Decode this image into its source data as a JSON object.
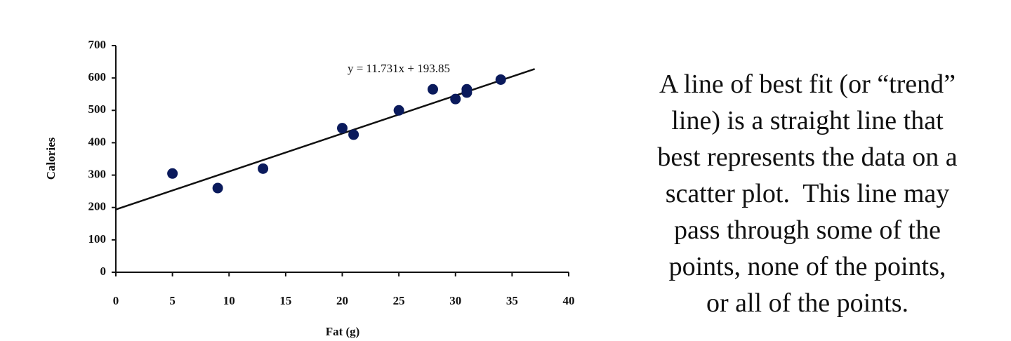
{
  "chart_data": {
    "type": "scatter",
    "x_label": "Fat (g)",
    "y_label": "Calories",
    "x": [
      5,
      9,
      13,
      20,
      21,
      25,
      28,
      30,
      31,
      31,
      34
    ],
    "values": [
      305,
      260,
      320,
      445,
      425,
      500,
      565,
      535,
      565,
      555,
      595
    ],
    "color": "#0a1a5c",
    "xlim": [
      0,
      40
    ],
    "xticks": [
      0,
      5,
      10,
      15,
      20,
      25,
      30,
      35,
      40
    ],
    "ylim": [
      0,
      700
    ],
    "yticks": [
      0,
      100,
      200,
      300,
      400,
      500,
      600,
      700
    ],
    "trendline": {
      "slope": 11.731,
      "intercept": 193.85,
      "xrange": [
        0,
        37
      ],
      "label": "y = 11.731x + 193.85",
      "color": "#111111"
    }
  },
  "caption": {
    "lines": [
      "A line of best fit (or “trend”",
      "line) is a straight line that",
      "best represents the data on a",
      "scatter plot.  This line may",
      "pass through some of the",
      "points, none of the points,",
      "or all of the points."
    ]
  }
}
